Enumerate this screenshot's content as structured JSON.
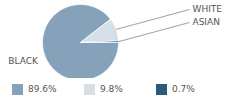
{
  "chart_data": {
    "type": "pie",
    "categories": [
      "BLACK",
      "WHITE",
      "ASIAN"
    ],
    "values": [
      89.6,
      9.8,
      0.7
    ],
    "value_labels": [
      "89.6%",
      "9.8%",
      "0.7%"
    ],
    "colors": [
      "#86a2ba",
      "#d5dfe8",
      "#2b5b7c"
    ],
    "legend": "bottom"
  }
}
